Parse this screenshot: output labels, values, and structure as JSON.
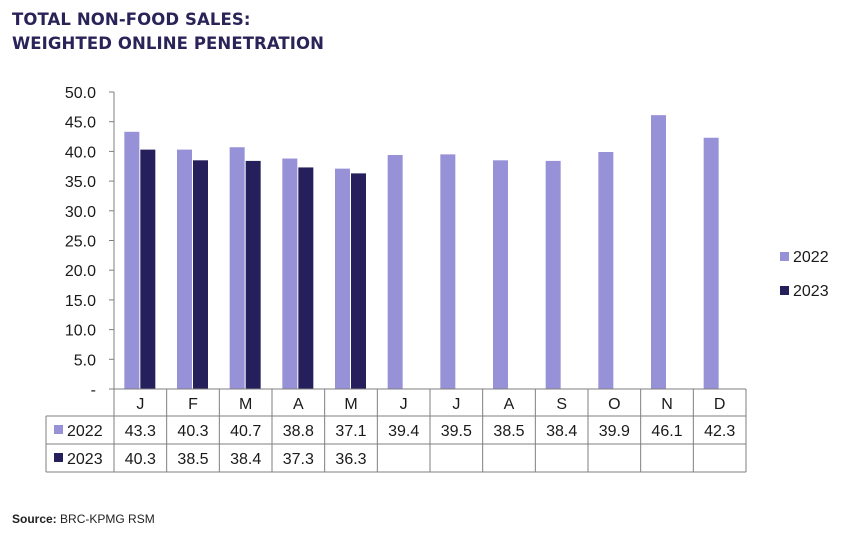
{
  "title_line1": "TOTAL NON-FOOD SALES:",
  "title_line2": "WEIGHTED ONLINE PENETRATION",
  "source_label": "Source:",
  "source_text": "BRC-KPMG RSM",
  "colors": {
    "series_2022": "#9791d8",
    "series_2023": "#251f5c",
    "title": "#2a2358"
  },
  "chart_data": {
    "type": "bar",
    "title": "TOTAL NON-FOOD SALES: WEIGHTED ONLINE PENETRATION",
    "categories": [
      "J",
      "F",
      "M",
      "A",
      "M",
      "J",
      "J",
      "A",
      "S",
      "O",
      "N",
      "D"
    ],
    "series": [
      {
        "name": "2022",
        "values": [
          43.3,
          40.3,
          40.7,
          38.8,
          37.1,
          39.4,
          39.5,
          38.5,
          38.4,
          39.9,
          46.1,
          42.3
        ]
      },
      {
        "name": "2023",
        "values": [
          40.3,
          38.5,
          38.4,
          37.3,
          36.3,
          null,
          null,
          null,
          null,
          null,
          null,
          null
        ]
      }
    ],
    "y_ticks": [
      "-",
      "5.0",
      "10.0",
      "15.0",
      "20.0",
      "25.0",
      "30.0",
      "35.0",
      "40.0",
      "45.0",
      "50.0"
    ],
    "ylim": [
      0,
      50
    ],
    "legend_position": "right",
    "data_table": true
  }
}
